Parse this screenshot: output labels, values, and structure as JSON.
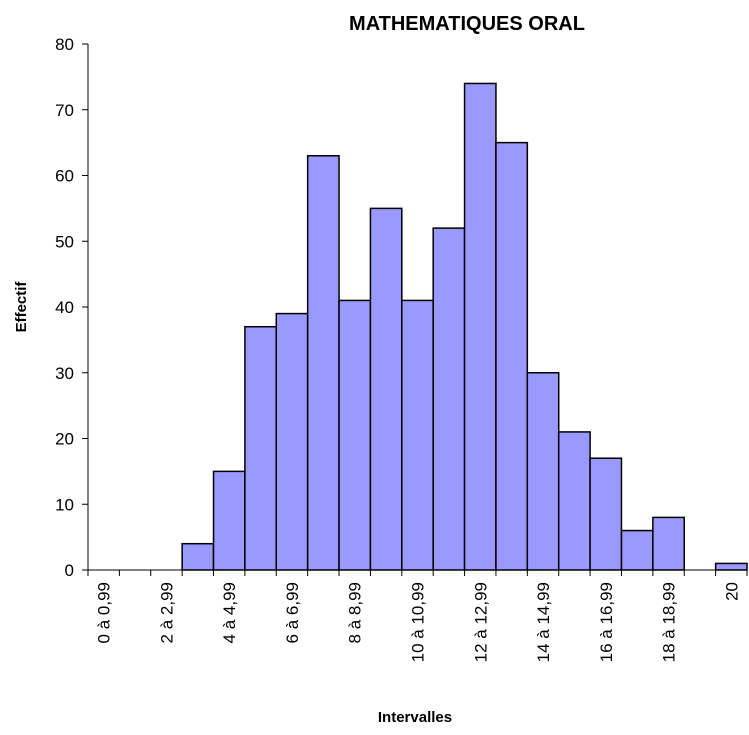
{
  "chart_data": {
    "type": "bar",
    "title": "MATHEMATIQUES ORAL",
    "x_label": "Intervalles",
    "y_label": "Effectif",
    "categories": [
      "0 à 0,99",
      null,
      "2 à 2,99",
      null,
      "4 à 4,99",
      null,
      "6 à 6,99",
      null,
      "8 à 8,99",
      null,
      "10 à 10,99",
      null,
      "12 à 12,99",
      null,
      "14 à 14,99",
      null,
      "16 à 16,99",
      null,
      "18 à 18,99",
      null,
      "20"
    ],
    "values": [
      0,
      0,
      0,
      4,
      15,
      37,
      39,
      63,
      41,
      55,
      41,
      52,
      74,
      65,
      30,
      21,
      17,
      6,
      8,
      0,
      1
    ],
    "color": "#9999ff",
    "ylim": [
      0,
      80
    ],
    "yticks": [
      0,
      10,
      20,
      30,
      40,
      50,
      60,
      70,
      80
    ],
    "grid": false
  }
}
